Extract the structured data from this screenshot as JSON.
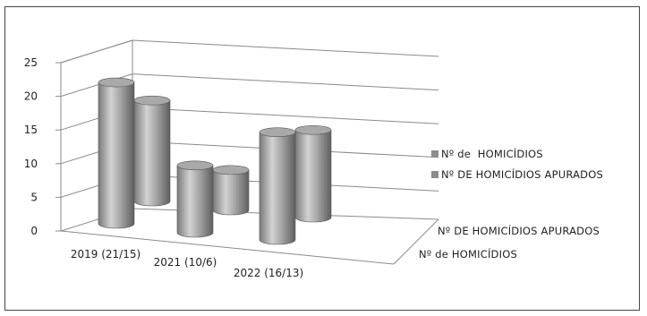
{
  "chart_data": {
    "type": "bar",
    "categories": [
      "2019 (21/15)",
      "2021 (10/6)",
      "2022 (16/13)"
    ],
    "series": [
      {
        "name": "Nº de  HOMICÍDIOS",
        "values": [
          21,
          10,
          16
        ]
      },
      {
        "name": "Nº DE HOMICÍDIOS APURADOS",
        "values": [
          15,
          6,
          13
        ]
      }
    ],
    "y_ticks": [
      "0",
      "5",
      "10",
      "15",
      "20",
      "25"
    ],
    "depth_labels": [
      "Nº DE HOMICÍDIOS APURADOS",
      "Nº de  HOMICÍDIOS"
    ],
    "ylim": [
      0,
      25
    ],
    "title": "",
    "xlabel": "",
    "ylabel": "",
    "grid": true,
    "legend_position": "right",
    "colors": {
      "bar_light": "#d2d2d2",
      "bar_mid": "#9a9a9a",
      "bar_dark": "#5e5e5e",
      "grid": "#8a8a8a"
    }
  }
}
